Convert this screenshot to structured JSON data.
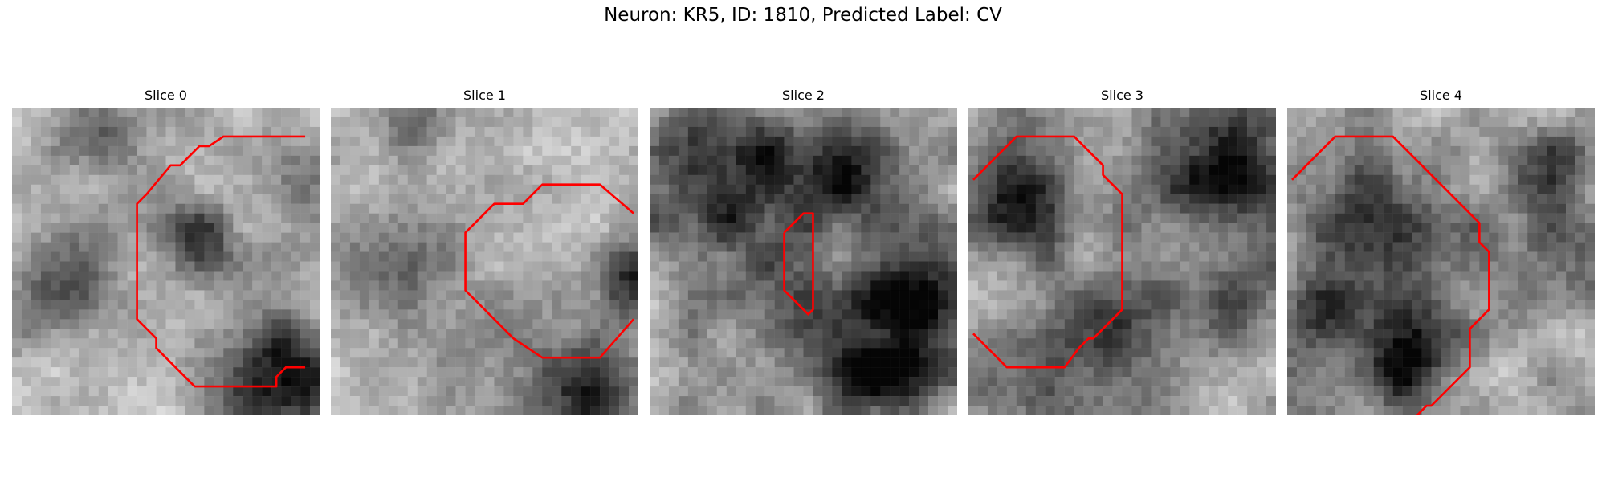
{
  "figure": {
    "title": "Neuron: KR5, ID: 1810, Predicted Label: CV",
    "contour_color": "#ff0000",
    "grid_size": 32
  },
  "slices": [
    {
      "label": "Slice 0",
      "seed": 11,
      "darkness": 0.28,
      "dark_spots": [
        [
          28,
          28,
          4.5,
          0.7
        ],
        [
          9,
          2,
          3,
          0.4
        ],
        [
          4,
          18,
          4,
          0.4
        ],
        [
          19,
          13,
          3,
          0.4
        ],
        [
          29,
          7,
          3,
          0.25
        ]
      ],
      "contour": [
        [
          30.5,
          3
        ],
        [
          22,
          3
        ],
        [
          20.5,
          4
        ],
        [
          19.5,
          4
        ],
        [
          18.5,
          5
        ],
        [
          17.5,
          6
        ],
        [
          16.5,
          6
        ],
        [
          14,
          9
        ],
        [
          13,
          10
        ],
        [
          13,
          22
        ],
        [
          15,
          24
        ],
        [
          15,
          25
        ],
        [
          19,
          29
        ],
        [
          27.5,
          29
        ],
        [
          27.5,
          28
        ],
        [
          28.5,
          27
        ],
        [
          30.5,
          27
        ]
      ]
    },
    {
      "label": "Slice 1",
      "seed": 23,
      "darkness": 0.22,
      "dark_spots": [
        [
          26,
          29,
          4,
          0.6
        ],
        [
          31,
          18,
          3,
          0.55
        ],
        [
          5,
          16,
          5,
          0.35
        ],
        [
          17,
          24,
          4,
          0.25
        ],
        [
          8,
          1,
          3,
          0.3
        ]
      ],
      "contour": [
        [
          31.5,
          11
        ],
        [
          28,
          8
        ],
        [
          22,
          8
        ],
        [
          20,
          10
        ],
        [
          19,
          10
        ],
        [
          17,
          10
        ],
        [
          14,
          13
        ],
        [
          14,
          19
        ],
        [
          19,
          24
        ],
        [
          22,
          26
        ],
        [
          28,
          26
        ],
        [
          31.5,
          22
        ]
      ]
    },
    {
      "label": "Slice 2",
      "seed": 37,
      "darkness": 0.42,
      "dark_spots": [
        [
          9,
          6,
          6,
          0.55
        ],
        [
          20,
          6,
          4,
          0.4
        ],
        [
          28,
          20,
          5,
          0.55
        ],
        [
          17,
          22,
          5,
          0.35
        ],
        [
          24,
          28,
          3,
          0.45
        ]
      ],
      "contour": [
        [
          14,
          13
        ],
        [
          16,
          11
        ],
        [
          17,
          11
        ],
        [
          17,
          21
        ],
        [
          16.5,
          21.5
        ],
        [
          15.5,
          20.5
        ],
        [
          14,
          19
        ],
        [
          14,
          13
        ]
      ]
    },
    {
      "label": "Slice 3",
      "seed": 51,
      "darkness": 0.4,
      "dark_spots": [
        [
          27,
          5,
          5,
          0.6
        ],
        [
          5,
          10,
          4,
          0.45
        ],
        [
          13,
          23,
          4,
          0.45
        ],
        [
          26,
          20,
          4,
          0.4
        ],
        [
          3,
          28,
          3,
          0.35
        ]
      ],
      "contour": [
        [
          0.5,
          7.5
        ],
        [
          5,
          3
        ],
        [
          11,
          3
        ],
        [
          14,
          6
        ],
        [
          14,
          7
        ],
        [
          16,
          9
        ],
        [
          16,
          21
        ],
        [
          13,
          24
        ],
        [
          12.5,
          24
        ],
        [
          11.5,
          25
        ],
        [
          10,
          27
        ],
        [
          4,
          27
        ],
        [
          0.5,
          23.5
        ]
      ]
    },
    {
      "label": "Slice 4",
      "seed": 67,
      "darkness": 0.36,
      "dark_spots": [
        [
          8,
          13,
          7,
          0.45
        ],
        [
          12,
          25,
          4,
          0.55
        ],
        [
          27,
          14,
          4,
          0.35
        ],
        [
          2,
          22,
          3,
          0.35
        ],
        [
          28,
          5,
          3,
          0.3
        ]
      ],
      "contour": [
        [
          0.5,
          7.5
        ],
        [
          5,
          3
        ],
        [
          11,
          3
        ],
        [
          19,
          11
        ],
        [
          20,
          12
        ],
        [
          20,
          14
        ],
        [
          21,
          15
        ],
        [
          21,
          21
        ],
        [
          19,
          23
        ],
        [
          19,
          27
        ],
        [
          15,
          31
        ],
        [
          14.5,
          31
        ],
        [
          13.5,
          32
        ]
      ]
    },
    {
      "label": "",
      "hidden": true
    }
  ]
}
